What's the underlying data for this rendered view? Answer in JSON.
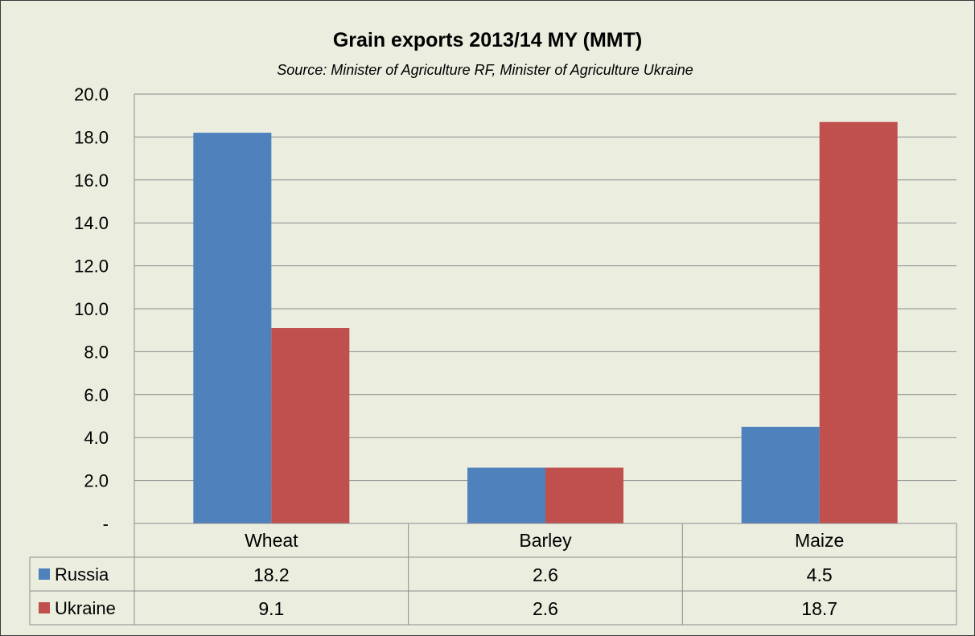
{
  "title": "Grain exports 2013/14 MY (MMT)",
  "subtitle": "Source: Minister of Agriculture RF, Minister of Agriculture Ukraine",
  "colors": {
    "Russia": "#4f81bd",
    "Ukraine": "#c0504d",
    "background": "#ebeedf",
    "grid": "#8c8c8c"
  },
  "chart_data": {
    "type": "bar",
    "title": "Grain exports 2013/14 MY (MMT)",
    "subtitle": "Source: Minister of Agriculture RF, Minister of Agriculture Ukraine",
    "categories": [
      "Wheat",
      "Barley",
      "Maize"
    ],
    "series": [
      {
        "name": "Russia",
        "values": [
          18.2,
          2.6,
          4.5
        ],
        "labels": [
          "18.2",
          "2.6",
          "4.5"
        ]
      },
      {
        "name": "Ukraine",
        "values": [
          9.1,
          2.6,
          18.7
        ],
        "labels": [
          "9.1",
          "2.6",
          "18.7"
        ]
      }
    ],
    "ylim": [
      0,
      20
    ],
    "yticks": [
      "-",
      "2.0",
      "4.0",
      "6.0",
      "8.0",
      "10.0",
      "12.0",
      "14.0",
      "16.0",
      "18.0",
      "20.0"
    ],
    "grid": true,
    "legend": "data-table"
  }
}
